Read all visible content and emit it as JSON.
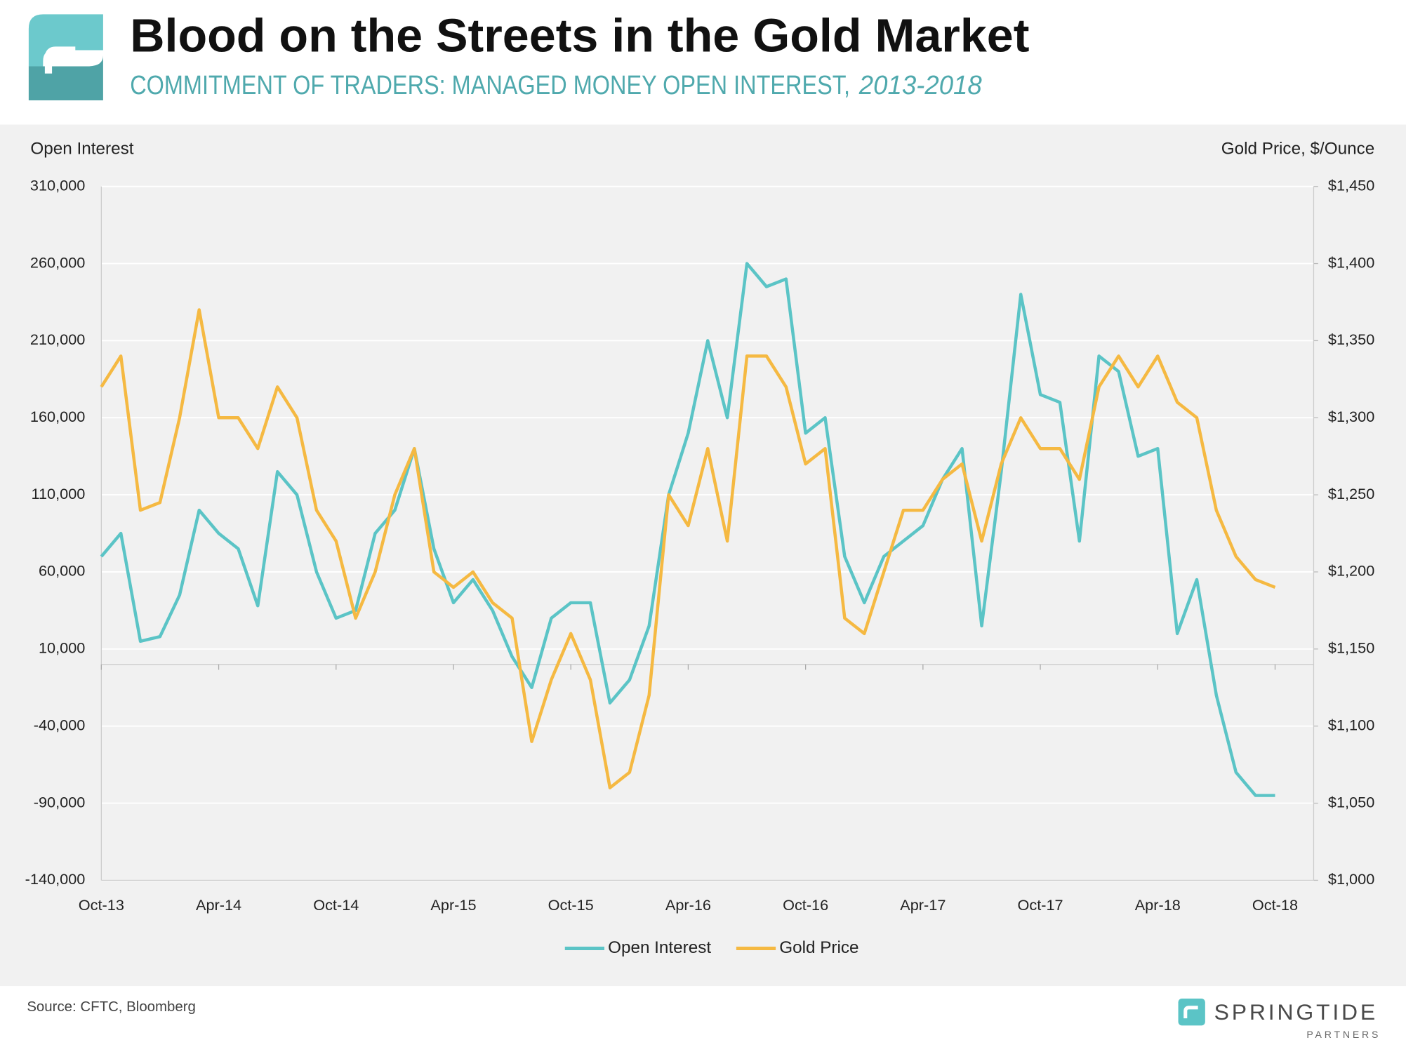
{
  "title": "Blood on the Streets in the Gold Market",
  "subtitle": "COMMITMENT OF TRADERS: MANAGED MONEY OPEN INTEREST,",
  "subtitle_years": "2013-2018",
  "source": "Source: CFTC, Bloomberg",
  "brand": "SPRINGTIDE",
  "brand_sub": "PARTNERS",
  "chart_data": {
    "type": "line",
    "ylabel": "Open Interest",
    "y2label": "Gold Price, $/Ounce",
    "x": [
      "Oct-13",
      null,
      null,
      null,
      null,
      null,
      "Apr-14",
      null,
      null,
      null,
      null,
      null,
      "Oct-14",
      null,
      null,
      null,
      null,
      null,
      "Apr-15",
      null,
      null,
      null,
      null,
      null,
      "Oct-15",
      null,
      null,
      null,
      null,
      null,
      "Apr-16",
      null,
      null,
      null,
      null,
      null,
      "Oct-16",
      null,
      null,
      null,
      null,
      null,
      "Apr-17",
      null,
      null,
      null,
      null,
      null,
      "Oct-17",
      null,
      null,
      null,
      null,
      null,
      "Apr-18",
      null,
      null,
      null,
      null,
      null,
      "Oct-18"
    ],
    "series": [
      {
        "name": "Open Interest",
        "color": "#5bc4c6",
        "values": [
          70000,
          85000,
          15000,
          18000,
          45000,
          100000,
          85000,
          75000,
          38000,
          125000,
          110000,
          60000,
          30000,
          35000,
          85000,
          100000,
          140000,
          75000,
          40000,
          55000,
          35000,
          5000,
          -15000,
          30000,
          40000,
          40000,
          -25000,
          -10000,
          25000,
          110000,
          150000,
          210000,
          160000,
          260000,
          245000,
          250000,
          150000,
          160000,
          70000,
          40000,
          70000,
          80000,
          90000,
          120000,
          140000,
          25000,
          125000,
          240000,
          175000,
          170000,
          80000,
          200000,
          190000,
          135000,
          140000,
          20000,
          55000,
          -20000,
          -70000,
          -85000,
          -85000
        ]
      },
      {
        "name": "Gold Price",
        "color": "#f5b942",
        "axis": "y2",
        "values": [
          1320,
          1340,
          1240,
          1245,
          1300,
          1370,
          1300,
          1300,
          1280,
          1320,
          1300,
          1240,
          1220,
          1170,
          1200,
          1250,
          1280,
          1200,
          1190,
          1200,
          1180,
          1170,
          1090,
          1130,
          1160,
          1130,
          1060,
          1070,
          1120,
          1250,
          1230,
          1280,
          1220,
          1340,
          1340,
          1320,
          1270,
          1280,
          1170,
          1160,
          1200,
          1240,
          1240,
          1260,
          1270,
          1220,
          1270,
          1300,
          1280,
          1280,
          1260,
          1320,
          1340,
          1320,
          1340,
          1310,
          1300,
          1240,
          1210,
          1195,
          1190
        ]
      }
    ],
    "ylim": [
      -140000,
      310000
    ],
    "yticks": [
      {
        "value": -140000,
        "label": "-140,000"
      },
      {
        "value": -90000,
        "label": "-90,000"
      },
      {
        "value": -40000,
        "label": "-40,000"
      },
      {
        "value": 10000,
        "label": "10,000"
      },
      {
        "value": 60000,
        "label": "60,000"
      },
      {
        "value": 110000,
        "label": "110,000"
      },
      {
        "value": 160000,
        "label": "160,000"
      },
      {
        "value": 210000,
        "label": "210,000"
      },
      {
        "value": 260000,
        "label": "260,000"
      },
      {
        "value": 310000,
        "label": "310,000"
      }
    ],
    "y2lim": [
      1000,
      1450
    ],
    "y2ticks": [
      {
        "value": 1000,
        "label": "$1,000"
      },
      {
        "value": 1050,
        "label": "$1,050"
      },
      {
        "value": 1100,
        "label": "$1,100"
      },
      {
        "value": 1150,
        "label": "$1,150"
      },
      {
        "value": 1200,
        "label": "$1,200"
      },
      {
        "value": 1250,
        "label": "$1,250"
      },
      {
        "value": 1300,
        "label": "$1,300"
      },
      {
        "value": 1350,
        "label": "$1,350"
      },
      {
        "value": 1400,
        "label": "$1,400"
      },
      {
        "value": 1450,
        "label": "$1,450"
      }
    ],
    "grid": true,
    "legend": "bottom"
  }
}
